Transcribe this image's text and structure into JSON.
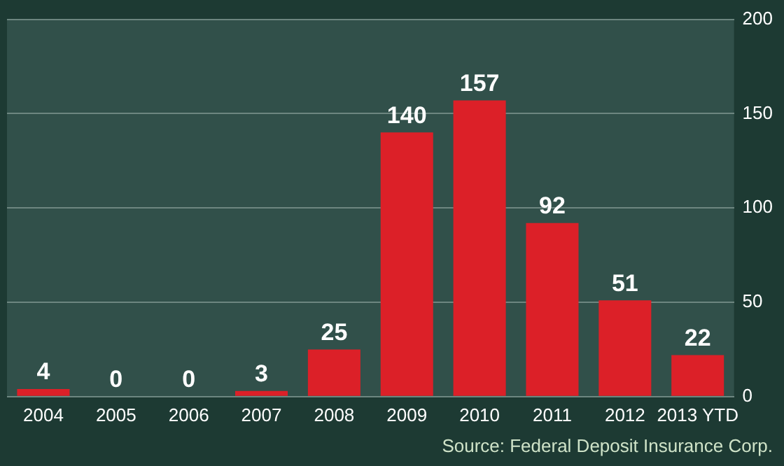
{
  "chart_data": {
    "type": "bar",
    "categories": [
      "2004",
      "2005",
      "2006",
      "2007",
      "2008",
      "2009",
      "2010",
      "2011",
      "2012",
      "2013 YTD"
    ],
    "values": [
      4,
      0,
      0,
      3,
      25,
      140,
      157,
      92,
      51,
      22
    ],
    "color": "#dc2028",
    "ylim": [
      0,
      200
    ],
    "yticks": [
      0,
      50,
      100,
      150,
      200
    ],
    "grid": "y",
    "data_labels": true,
    "annotations": [
      "Source: Federal Deposit Insurance Corp."
    ]
  }
}
